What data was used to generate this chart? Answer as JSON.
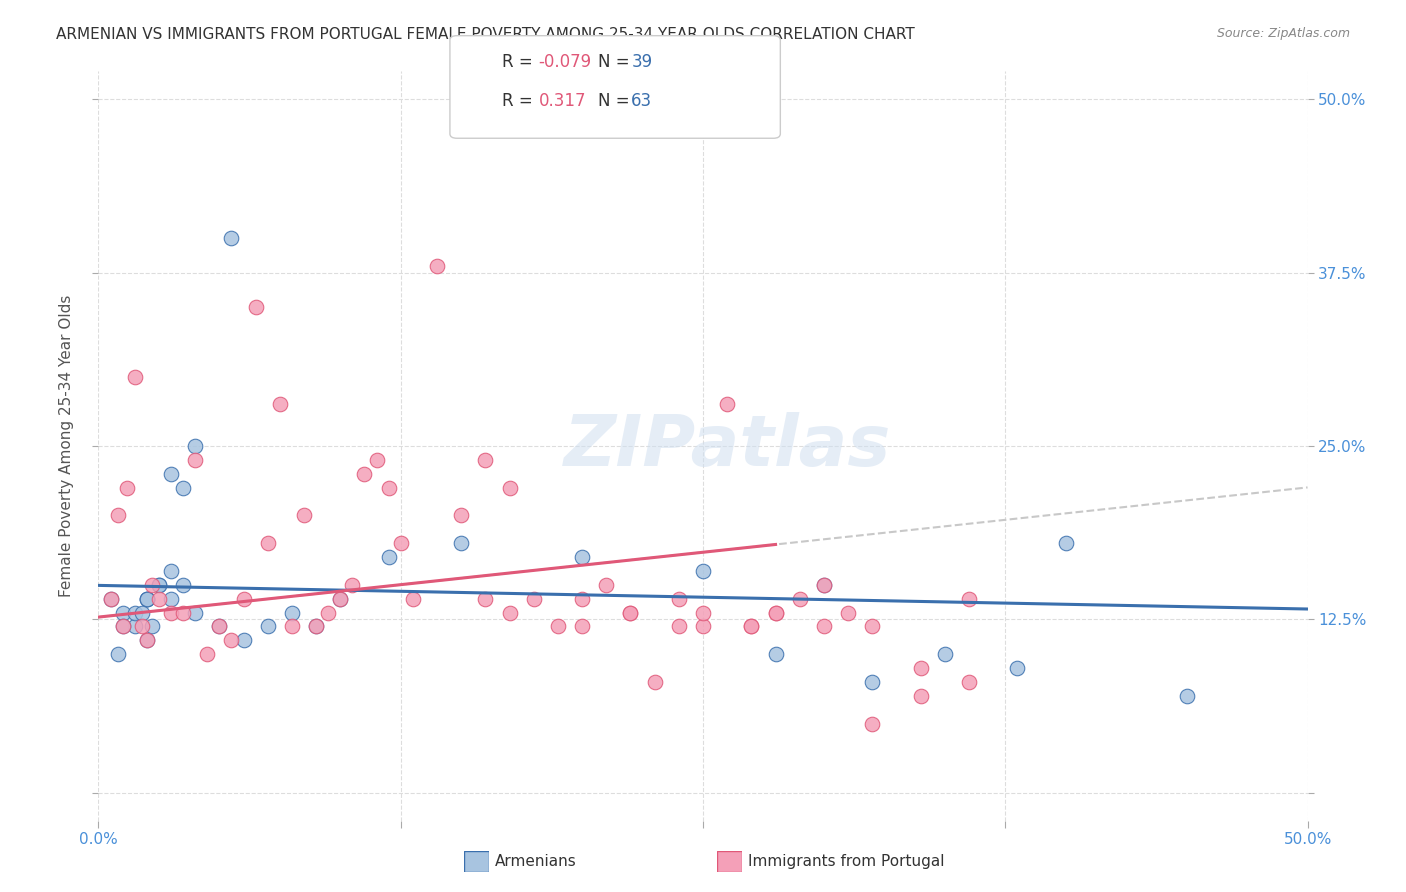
{
  "title": "ARMENIAN VS IMMIGRANTS FROM PORTUGAL FEMALE POVERTY AMONG 25-34 YEAR OLDS CORRELATION CHART",
  "source": "Source: ZipAtlas.com",
  "ylabel": "Female Poverty Among 25-34 Year Olds",
  "xlim": [
    0.0,
    0.5
  ],
  "ylim": [
    -0.02,
    0.52
  ],
  "yticks": [
    0.0,
    0.125,
    0.25,
    0.375,
    0.5
  ],
  "ytick_labels": [
    "",
    "12.5%",
    "25.0%",
    "37.5%",
    "50.0%"
  ],
  "xticks": [
    0.0,
    0.125,
    0.25,
    0.375,
    0.5
  ],
  "xtick_labels": [
    "0.0%",
    "",
    "",
    "",
    "50.0%"
  ],
  "watermark": "ZIPatlas",
  "legend_r_armenian": "-0.079",
  "legend_n_armenian": "39",
  "legend_r_portugal": "0.317",
  "legend_n_portugal": "63",
  "armenian_color": "#a8c4e0",
  "armenian_line_color": "#3a6fad",
  "portugal_color": "#f4a0b8",
  "portugal_line_color": "#e05878",
  "armenian_x": [
    0.02,
    0.01,
    0.015,
    0.008,
    0.02,
    0.025,
    0.03,
    0.035,
    0.03,
    0.04,
    0.02,
    0.01,
    0.015,
    0.02,
    0.025,
    0.03,
    0.035,
    0.04,
    0.05,
    0.06,
    0.07,
    0.08,
    0.09,
    0.1,
    0.12,
    0.15,
    0.2,
    0.25,
    0.3,
    0.35,
    0.4,
    0.45,
    0.28,
    0.32,
    0.38,
    0.005,
    0.018,
    0.022,
    0.055
  ],
  "armenian_y": [
    0.14,
    0.13,
    0.12,
    0.1,
    0.11,
    0.15,
    0.16,
    0.22,
    0.23,
    0.25,
    0.14,
    0.12,
    0.13,
    0.14,
    0.15,
    0.14,
    0.15,
    0.13,
    0.12,
    0.11,
    0.12,
    0.13,
    0.12,
    0.14,
    0.17,
    0.18,
    0.17,
    0.16,
    0.15,
    0.1,
    0.18,
    0.07,
    0.1,
    0.08,
    0.09,
    0.14,
    0.13,
    0.12,
    0.4
  ],
  "portugal_x": [
    0.005,
    0.008,
    0.01,
    0.012,
    0.015,
    0.018,
    0.02,
    0.022,
    0.025,
    0.03,
    0.035,
    0.04,
    0.045,
    0.05,
    0.055,
    0.06,
    0.065,
    0.07,
    0.075,
    0.08,
    0.085,
    0.09,
    0.095,
    0.1,
    0.105,
    0.11,
    0.115,
    0.12,
    0.125,
    0.13,
    0.14,
    0.15,
    0.16,
    0.17,
    0.18,
    0.19,
    0.2,
    0.21,
    0.22,
    0.23,
    0.24,
    0.25,
    0.26,
    0.27,
    0.28,
    0.29,
    0.3,
    0.32,
    0.34,
    0.36,
    0.16,
    0.17,
    0.2,
    0.22,
    0.24,
    0.25,
    0.27,
    0.28,
    0.3,
    0.31,
    0.32,
    0.34,
    0.36
  ],
  "portugal_y": [
    0.14,
    0.2,
    0.12,
    0.22,
    0.3,
    0.12,
    0.11,
    0.15,
    0.14,
    0.13,
    0.13,
    0.24,
    0.1,
    0.12,
    0.11,
    0.14,
    0.35,
    0.18,
    0.28,
    0.12,
    0.2,
    0.12,
    0.13,
    0.14,
    0.15,
    0.23,
    0.24,
    0.22,
    0.18,
    0.14,
    0.38,
    0.2,
    0.14,
    0.13,
    0.14,
    0.12,
    0.12,
    0.15,
    0.13,
    0.08,
    0.14,
    0.12,
    0.28,
    0.12,
    0.13,
    0.14,
    0.12,
    0.05,
    0.07,
    0.14,
    0.24,
    0.22,
    0.14,
    0.13,
    0.12,
    0.13,
    0.12,
    0.13,
    0.15,
    0.13,
    0.12,
    0.09,
    0.08
  ],
  "background_color": "#ffffff",
  "grid_color": "#dddddd",
  "title_color": "#333333",
  "axis_label_color": "#555555",
  "tick_label_color": "#4a90d9"
}
